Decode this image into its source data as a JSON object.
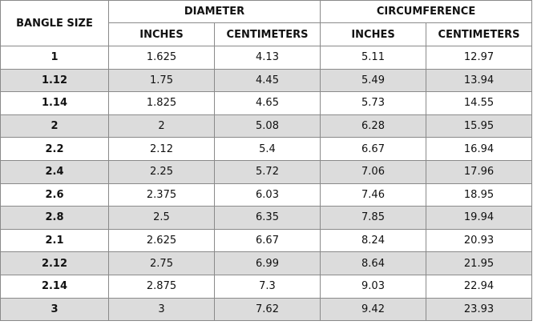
{
  "table": {
    "header": {
      "size_label": "BANGLE SIZE",
      "diameter_label": "DIAMETER",
      "circumference_label": "CIRCUMFERENCE",
      "inches_label": "INCHES",
      "centimeters_label": "CENTIMETERS"
    },
    "rows": [
      {
        "size": "1",
        "dia_in": "1.625",
        "dia_cm": "4.13",
        "circ_in": "5.11",
        "circ_cm": "12.97"
      },
      {
        "size": "1.12",
        "dia_in": "1.75",
        "dia_cm": "4.45",
        "circ_in": "5.49",
        "circ_cm": "13.94"
      },
      {
        "size": "1.14",
        "dia_in": "1.825",
        "dia_cm": "4.65",
        "circ_in": "5.73",
        "circ_cm": "14.55"
      },
      {
        "size": "2",
        "dia_in": "2",
        "dia_cm": "5.08",
        "circ_in": "6.28",
        "circ_cm": "15.95"
      },
      {
        "size": "2.2",
        "dia_in": "2.12",
        "dia_cm": "5.4",
        "circ_in": "6.67",
        "circ_cm": "16.94"
      },
      {
        "size": "2.4",
        "dia_in": "2.25",
        "dia_cm": "5.72",
        "circ_in": "7.06",
        "circ_cm": "17.96"
      },
      {
        "size": "2.6",
        "dia_in": "2.375",
        "dia_cm": "6.03",
        "circ_in": "7.46",
        "circ_cm": "18.95"
      },
      {
        "size": "2.8",
        "dia_in": "2.5",
        "dia_cm": "6.35",
        "circ_in": "7.85",
        "circ_cm": "19.94"
      },
      {
        "size": "2.1",
        "dia_in": "2.625",
        "dia_cm": "6.67",
        "circ_in": "8.24",
        "circ_cm": "20.93"
      },
      {
        "size": "2.12",
        "dia_in": "2.75",
        "dia_cm": "6.99",
        "circ_in": "8.64",
        "circ_cm": "21.95"
      },
      {
        "size": "2.14",
        "dia_in": "2.875",
        "dia_cm": "7.3",
        "circ_in": "9.03",
        "circ_cm": "22.94"
      },
      {
        "size": "3",
        "dia_in": "3",
        "dia_cm": "7.62",
        "circ_in": "9.42",
        "circ_cm": "23.93"
      }
    ]
  },
  "colors": {
    "shaded_row": "#dcdcdc",
    "border": "#8a8a8a"
  }
}
